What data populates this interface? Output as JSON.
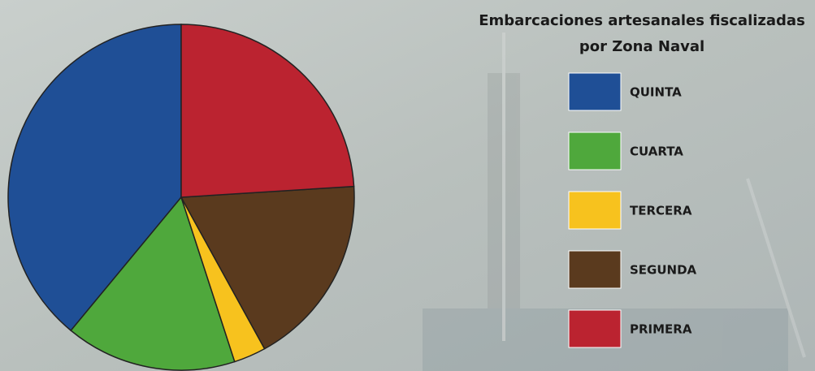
{
  "chart_data": {
    "type": "pie",
    "title": [
      "Embarcaciones artesanales fiscalizadas",
      "por Zona Naval"
    ],
    "categories": [
      "QUINTA",
      "CUARTA",
      "TERCERA",
      "SEGUNDA",
      "PRIMERA"
    ],
    "values": [
      39,
      16,
      3,
      18,
      24
    ],
    "colors": [
      "#1f4f96",
      "#4fa83c",
      "#f7c21e",
      "#5a3a1e",
      "#bb2330"
    ]
  }
}
